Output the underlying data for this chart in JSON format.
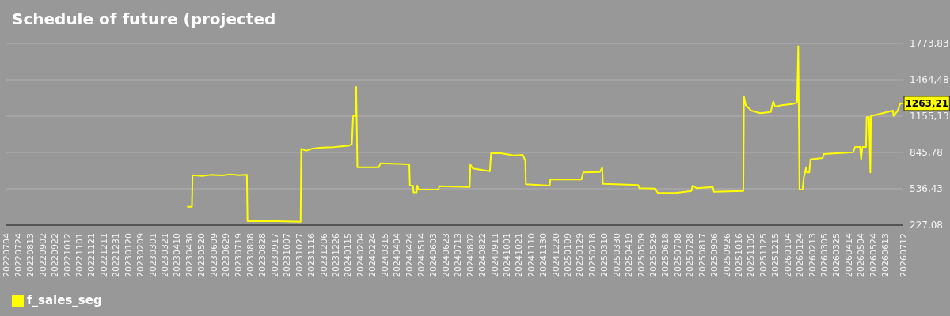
{
  "chart_data": {
    "type": "line",
    "title": "Schedule of future (projected",
    "x": [
      "2023-04-26",
      "2023-05-04",
      "2023-05-05",
      "2023-05-21",
      "2023-06-03",
      "2023-06-23",
      "2023-07-06",
      "2023-07-19",
      "2023-08-02",
      "2023-08-03",
      "2023-09-09",
      "2023-10-29",
      "2023-10-30",
      "2023-11-07",
      "2023-11-16",
      "2023-12-03",
      "2023-12-22",
      "2024-01-08",
      "2024-01-17",
      "2024-01-21",
      "2024-01-23",
      "2024-01-27",
      "2024-01-28",
      "2024-01-30",
      "2024-03-05",
      "2024-03-08",
      "2024-04-24",
      "2024-04-25",
      "2024-04-30",
      "2024-05-01",
      "2024-05-06",
      "2024-05-07",
      "2024-05-09",
      "2024-06-11",
      "2024-06-12",
      "2024-08-01",
      "2024-08-02",
      "2024-08-06",
      "2024-09-03",
      "2024-09-05",
      "2024-09-21",
      "2024-10-12",
      "2024-10-27",
      "2024-10-31",
      "2024-11-01",
      "2024-12-10",
      "2024-12-11",
      "2025-01-31",
      "2025-02-03",
      "2025-03-02",
      "2025-03-06",
      "2025-03-07",
      "2025-05-04",
      "2025-05-06",
      "2025-06-01",
      "2025-06-05",
      "2025-07-04",
      "2025-07-30",
      "2025-08-01",
      "2025-08-08",
      "2025-09-03",
      "2025-09-05",
      "2025-10-23",
      "2025-10-24",
      "2025-10-27",
      "2025-11-05",
      "2025-11-20",
      "2025-12-07",
      "2025-12-11",
      "2025-12-14",
      "2025-12-25",
      "2026-01-11",
      "2026-01-19",
      "2026-01-21",
      "2026-01-23",
      "2026-01-28",
      "2026-01-30",
      "2026-02-03",
      "2026-02-04",
      "2026-02-08",
      "2026-02-10",
      "2026-03-02",
      "2026-03-04",
      "2026-04-21",
      "2026-04-24",
      "2026-05-02",
      "2026-05-04",
      "2026-05-06",
      "2026-05-12",
      "2026-05-13",
      "2026-05-17",
      "2026-05-19",
      "2026-05-20",
      "2026-05-30",
      "2026-06-25",
      "2026-06-26",
      "2026-07-03",
      "2026-07-07",
      "2026-07-12"
    ],
    "series": [
      {
        "name": "f_sales_seg",
        "color": "#ffff00",
        "values": [
          384,
          384,
          652,
          645,
          655,
          650,
          660,
          652,
          655,
          261,
          262,
          255,
          877,
          860,
          877,
          888,
          892,
          900,
          905,
          920,
          1157,
          1157,
          1404,
          720,
          720,
          754,
          745,
          563,
          563,
          507,
          507,
          563,
          530,
          530,
          559,
          552,
          743,
          709,
          686,
          839,
          839,
          821,
          825,
          776,
          575,
          563,
          615,
          615,
          676,
          680,
          716,
          579,
          568,
          541,
          538,
          501,
          501,
          518,
          563,
          541,
          552,
          512,
          518,
          1325,
          1247,
          1202,
          1180,
          1191,
          1281,
          1236,
          1247,
          1258,
          1269,
          1751,
          530,
          530,
          630,
          720,
          676,
          676,
          787,
          799,
          832,
          848,
          893,
          893,
          787,
          893,
          893,
          1146,
          1146,
          676,
          1157,
          1169,
          1202,
          1157,
          1202,
          1265,
          1263.21
        ],
        "value_labels": [
          null,
          null,
          null,
          null,
          null,
          null,
          null,
          null,
          null,
          null,
          null,
          null,
          null,
          null,
          null,
          null,
          null,
          null,
          null,
          null,
          null,
          null,
          null,
          null,
          null,
          null,
          null,
          null,
          null,
          null,
          null,
          null,
          null,
          null,
          null,
          null,
          null,
          null,
          null,
          null,
          null,
          null,
          null,
          null,
          null,
          null,
          null,
          null,
          null,
          null,
          null,
          null,
          null,
          null,
          null,
          null,
          null,
          null,
          null,
          null,
          null,
          null,
          null,
          null,
          null,
          null,
          null,
          null,
          null,
          null,
          null,
          null,
          null,
          null,
          null,
          null,
          null,
          null,
          null,
          null,
          null,
          null,
          null,
          null,
          null,
          null,
          null,
          null,
          null,
          null,
          null,
          null,
          null,
          null,
          null,
          null,
          null,
          null,
          "1263,21"
        ]
      }
    ],
    "xlim": [
      "2022-07-04",
      "2026-07-12"
    ],
    "xticks": [
      {
        "value": "2022-07-04",
        "label": "20220704"
      },
      {
        "value": "2022-07-24",
        "label": "20220724"
      },
      {
        "value": "2022-08-13",
        "label": "20220813"
      },
      {
        "value": "2022-09-02",
        "label": "20220902"
      },
      {
        "value": "2022-09-22",
        "label": "20220922"
      },
      {
        "value": "2022-10-12",
        "label": "20221012"
      },
      {
        "value": "2022-11-01",
        "label": "20221101"
      },
      {
        "value": "2022-11-21",
        "label": "20221121"
      },
      {
        "value": "2022-12-11",
        "label": "20221211"
      },
      {
        "value": "2022-12-31",
        "label": "20221231"
      },
      {
        "value": "2023-01-20",
        "label": "20230120"
      },
      {
        "value": "2023-02-09",
        "label": "20230209"
      },
      {
        "value": "2023-03-01",
        "label": "20230301"
      },
      {
        "value": "2023-03-21",
        "label": "20230321"
      },
      {
        "value": "2023-04-10",
        "label": "20230410"
      },
      {
        "value": "2023-04-30",
        "label": "20230430"
      },
      {
        "value": "2023-05-20",
        "label": "20230520"
      },
      {
        "value": "2023-06-09",
        "label": "20230609"
      },
      {
        "value": "2023-06-29",
        "label": "20230629"
      },
      {
        "value": "2023-07-19",
        "label": "20230719"
      },
      {
        "value": "2023-08-08",
        "label": "20230808"
      },
      {
        "value": "2023-08-28",
        "label": "20230828"
      },
      {
        "value": "2023-09-17",
        "label": "20230917"
      },
      {
        "value": "2023-10-07",
        "label": "20231007"
      },
      {
        "value": "2023-10-27",
        "label": "20231027"
      },
      {
        "value": "2023-11-16",
        "label": "20231116"
      },
      {
        "value": "2023-12-06",
        "label": "20231206"
      },
      {
        "value": "2023-12-26",
        "label": "20231226"
      },
      {
        "value": "2024-01-15",
        "label": "20240115"
      },
      {
        "value": "2024-02-04",
        "label": "20240204"
      },
      {
        "value": "2024-02-24",
        "label": "20240224"
      },
      {
        "value": "2024-03-15",
        "label": "20240315"
      },
      {
        "value": "2024-04-04",
        "label": "20240404"
      },
      {
        "value": "2024-04-24",
        "label": "20240424"
      },
      {
        "value": "2024-05-14",
        "label": "20240514"
      },
      {
        "value": "2024-06-03",
        "label": "20240603"
      },
      {
        "value": "2024-06-23",
        "label": "20240623"
      },
      {
        "value": "2024-07-13",
        "label": "20240713"
      },
      {
        "value": "2024-08-02",
        "label": "20240802"
      },
      {
        "value": "2024-08-22",
        "label": "20240822"
      },
      {
        "value": "2024-09-11",
        "label": "20240911"
      },
      {
        "value": "2024-10-01",
        "label": "20241001"
      },
      {
        "value": "2024-10-21",
        "label": "20241021"
      },
      {
        "value": "2024-11-10",
        "label": "20241110"
      },
      {
        "value": "2024-11-30",
        "label": "20241130"
      },
      {
        "value": "2024-12-20",
        "label": "20241220"
      },
      {
        "value": "2025-01-09",
        "label": "20250109"
      },
      {
        "value": "2025-01-29",
        "label": "20250129"
      },
      {
        "value": "2025-02-18",
        "label": "20250218"
      },
      {
        "value": "2025-03-10",
        "label": "20250310"
      },
      {
        "value": "2025-03-30",
        "label": "20250330"
      },
      {
        "value": "2025-04-19",
        "label": "20250419"
      },
      {
        "value": "2025-05-09",
        "label": "20250509"
      },
      {
        "value": "2025-05-29",
        "label": "20250529"
      },
      {
        "value": "2025-06-18",
        "label": "20250618"
      },
      {
        "value": "2025-07-08",
        "label": "20250708"
      },
      {
        "value": "2025-07-28",
        "label": "20250728"
      },
      {
        "value": "2025-08-17",
        "label": "20250817"
      },
      {
        "value": "2025-09-06",
        "label": "20250906"
      },
      {
        "value": "2025-09-26",
        "label": "20250926"
      },
      {
        "value": "2025-10-16",
        "label": "20251016"
      },
      {
        "value": "2025-11-05",
        "label": "20251105"
      },
      {
        "value": "2025-11-25",
        "label": "20251125"
      },
      {
        "value": "2025-12-15",
        "label": "20251215"
      },
      {
        "value": "2026-01-04",
        "label": "20260104"
      },
      {
        "value": "2026-01-24",
        "label": "20260124"
      },
      {
        "value": "2026-02-13",
        "label": "20260213"
      },
      {
        "value": "2026-03-05",
        "label": "20260305"
      },
      {
        "value": "2026-03-25",
        "label": "20260325"
      },
      {
        "value": "2026-04-14",
        "label": "20260414"
      },
      {
        "value": "2026-05-04",
        "label": "20260504"
      },
      {
        "value": "2026-05-24",
        "label": "20260524"
      },
      {
        "value": "2026-06-13",
        "label": "20260613"
      },
      {
        "value": "2026-07-12",
        "label": "20260712"
      }
    ],
    "ylim": [
      227.08,
      1773.83
    ],
    "yticks": [
      {
        "value": 227.08,
        "label": "227,08"
      },
      {
        "value": 536.43,
        "label": "536,43"
      },
      {
        "value": 845.78,
        "label": "845,78"
      },
      {
        "value": 1155.13,
        "label": "1155,13"
      },
      {
        "value": 1464.48,
        "label": "1464,48"
      },
      {
        "value": 1773.83,
        "label": "1773,83"
      }
    ],
    "grid": "y",
    "legend": "bottom left"
  }
}
